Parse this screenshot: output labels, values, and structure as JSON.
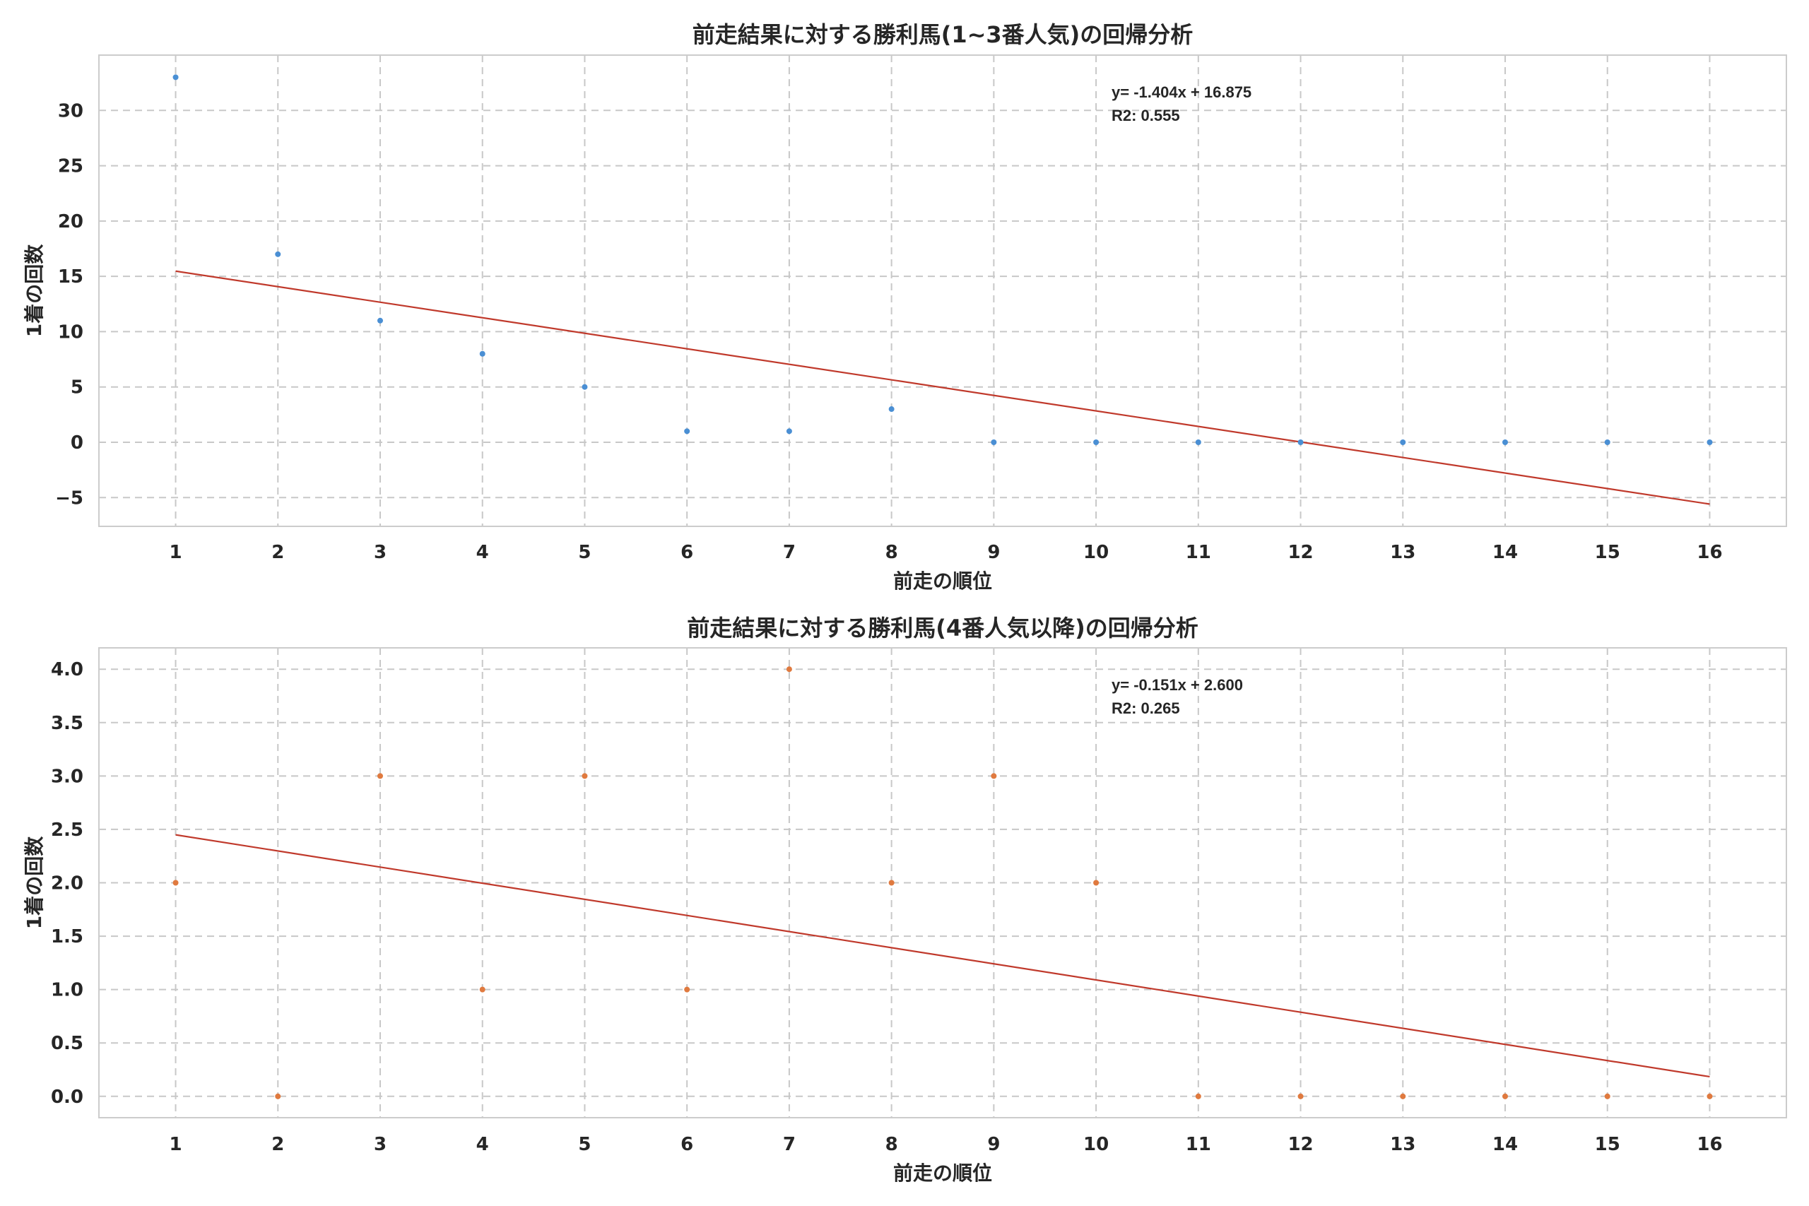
{
  "chart_data": [
    {
      "type": "scatter",
      "title": "前走結果に対する勝利馬(1~3番人気)の回帰分析",
      "xlabel": "前走の順位",
      "ylabel": "1着の回数",
      "xlim": [
        0.25,
        16.75
      ],
      "ylim": [
        -7.6,
        35.0
      ],
      "xticks": [
        1,
        2,
        3,
        4,
        5,
        6,
        7,
        8,
        9,
        10,
        11,
        12,
        13,
        14,
        15,
        16
      ],
      "xtick_labels": [
        "1",
        "2",
        "3",
        "4",
        "5",
        "6",
        "7",
        "8",
        "9",
        "10",
        "11",
        "12",
        "13",
        "14",
        "15",
        "16"
      ],
      "yticks": [
        -5,
        0,
        5,
        10,
        15,
        20,
        25,
        30
      ],
      "ytick_labels": [
        "−5",
        "0",
        "5",
        "10",
        "15",
        "20",
        "25",
        "30"
      ],
      "x": [
        1,
        2,
        3,
        4,
        5,
        6,
        7,
        8,
        9,
        10,
        11,
        12,
        13,
        14,
        15,
        16
      ],
      "y": [
        33,
        17,
        11,
        8,
        5,
        1,
        1,
        3,
        0,
        0,
        0,
        0,
        0,
        0,
        0,
        0
      ],
      "point_color": "#4a8fd4",
      "regression": {
        "slope": -1.404,
        "intercept": 16.875,
        "color": "#c0392b"
      },
      "annotation": {
        "equation": "y= -1.404x + 16.875",
        "r2": "R2: 0.555"
      },
      "grid": true
    },
    {
      "type": "scatter",
      "title": "前走結果に対する勝利馬(4番人気以降)の回帰分析",
      "xlabel": "前走の順位",
      "ylabel": "1着の回数",
      "xlim": [
        0.25,
        16.75
      ],
      "ylim": [
        -0.2,
        4.2
      ],
      "xticks": [
        1,
        2,
        3,
        4,
        5,
        6,
        7,
        8,
        9,
        10,
        11,
        12,
        13,
        14,
        15,
        16
      ],
      "xtick_labels": [
        "1",
        "2",
        "3",
        "4",
        "5",
        "6",
        "7",
        "8",
        "9",
        "10",
        "11",
        "12",
        "13",
        "14",
        "15",
        "16"
      ],
      "yticks": [
        0.0,
        0.5,
        1.0,
        1.5,
        2.0,
        2.5,
        3.0,
        3.5,
        4.0
      ],
      "ytick_labels": [
        "0.0",
        "0.5",
        "1.0",
        "1.5",
        "2.0",
        "2.5",
        "3.0",
        "3.5",
        "4.0"
      ],
      "x": [
        1,
        2,
        3,
        4,
        5,
        6,
        7,
        8,
        9,
        10,
        11,
        12,
        13,
        14,
        15,
        16
      ],
      "y": [
        2,
        0,
        3,
        1,
        3,
        1,
        4,
        2,
        3,
        2,
        0,
        0,
        0,
        0,
        0,
        0
      ],
      "point_color": "#e07a3f",
      "regression": {
        "slope": -0.151,
        "intercept": 2.6,
        "color": "#c0392b"
      },
      "annotation": {
        "equation": "y= -0.151x + 2.600",
        "r2": "R2: 0.265"
      },
      "grid": true
    }
  ]
}
